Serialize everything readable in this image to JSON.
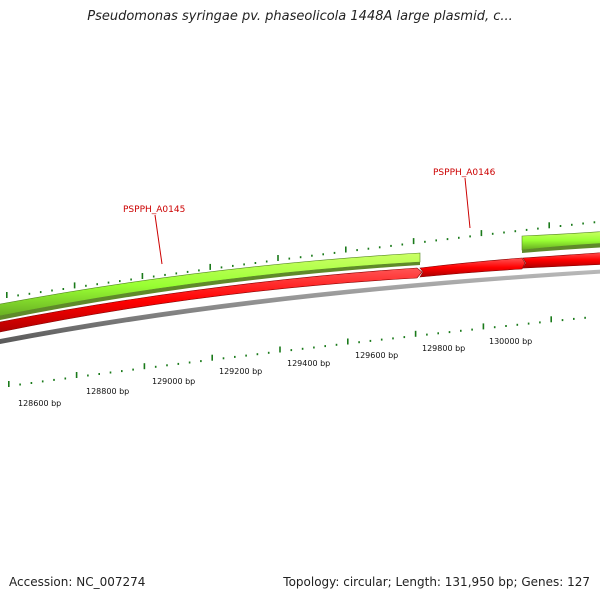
{
  "header": {
    "title": "Pseudomonas syringae pv. phaseolicola 1448A large plasmid, c..."
  },
  "footer": {
    "accession": "Accession: NC_007274",
    "topology": "Topology: circular; Length: 131,950 bp; Genes: 127"
  },
  "genes": [
    {
      "name": "PSPPH_A0145"
    },
    {
      "name": "PSPPH_A0146"
    }
  ],
  "scale_labels": [
    "128600 bp",
    "128800 bp",
    "129000 bp",
    "129200 bp",
    "129400 bp",
    "129600 bp",
    "129800 bp",
    "130000 bp"
  ],
  "colors": {
    "forward_strand": "#99ff33",
    "reverse_strand": "#ff0000",
    "backbone": "#808080",
    "ticks": "#1a7a1a",
    "gene_label": "#cc0000"
  }
}
